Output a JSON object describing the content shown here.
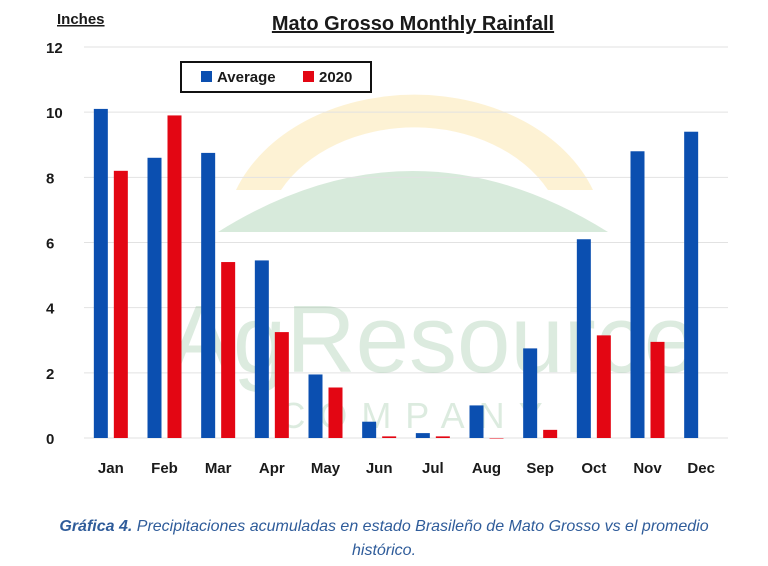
{
  "chart_data": {
    "type": "bar",
    "title": "Mato Grosso Monthly Rainfall",
    "ylabel": "Inches",
    "xlabel": "",
    "ylim": [
      0,
      12
    ],
    "yticks": [
      0,
      2,
      4,
      6,
      8,
      10,
      12
    ],
    "grid": true,
    "legend_position": "top-left",
    "categories": [
      "Jan",
      "Feb",
      "Mar",
      "Apr",
      "May",
      "Jun",
      "Jul",
      "Aug",
      "Sep",
      "Oct",
      "Nov",
      "Dec"
    ],
    "series": [
      {
        "name": "Average",
        "color": "#0b4fb0",
        "values": [
          10.1,
          8.6,
          8.75,
          5.45,
          1.95,
          0.5,
          0.15,
          1.0,
          2.75,
          6.1,
          8.8,
          9.4
        ]
      },
      {
        "name": "2020",
        "color": "#e30613",
        "values": [
          8.2,
          9.9,
          5.4,
          3.25,
          1.55,
          0.05,
          0.05,
          0,
          0.25,
          3.15,
          2.95,
          null
        ]
      }
    ]
  },
  "watermark": {
    "line1": "AgResource",
    "line2": "COMPANY"
  },
  "caption": {
    "label": "Gráfica 4.",
    "text": "Precipitaciones acumuladas en estado Brasileño de Mato Grosso vs el promedio histórico."
  }
}
